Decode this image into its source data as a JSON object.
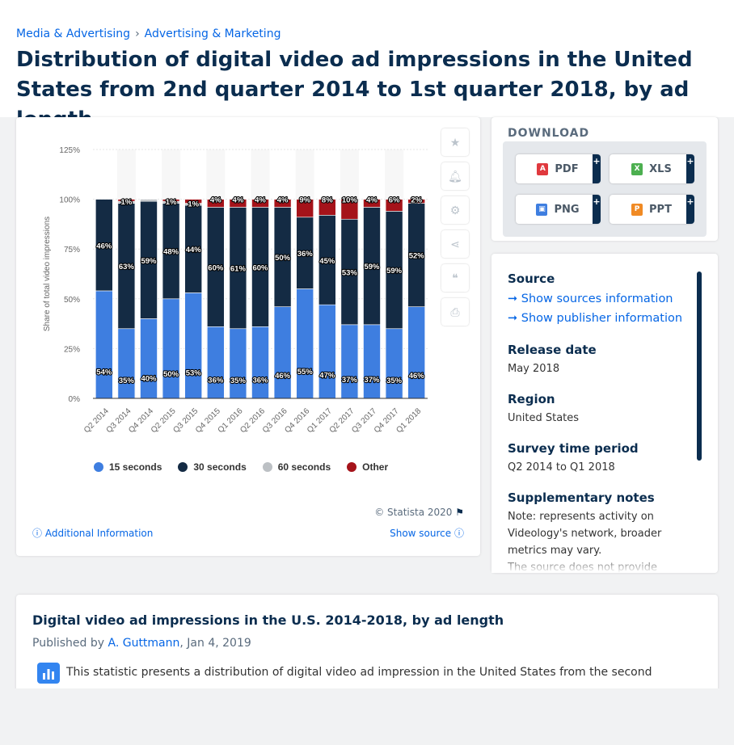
{
  "breadcrumb": [
    "Media & Advertising",
    "Advertising & Marketing"
  ],
  "title": "Distribution of digital video ad impressions in the United States from 2nd quarter 2014 to 1st quarter 2018, by ad length",
  "chart_data": {
    "type": "bar",
    "stacked": true,
    "categories": [
      "Q2 2014",
      "Q3 2014",
      "Q4 2014",
      "Q2 2015",
      "Q3 2015",
      "Q4 2015",
      "Q1 2016",
      "Q2 2016",
      "Q3 2016",
      "Q4 2016",
      "Q1 2017",
      "Q2 2017",
      "Q3 2017",
      "Q4 2017",
      "Q1 2018"
    ],
    "ylabel": "Share of total video impressions",
    "yticks": [
      "0%",
      "25%",
      "50%",
      "75%",
      "100%",
      "125%"
    ],
    "ylim": [
      0,
      125
    ],
    "series": [
      {
        "name": "15 seconds",
        "color": "#3e7ee0",
        "values": [
          54,
          35,
          40,
          50,
          53,
          36,
          35,
          36,
          46,
          55,
          47,
          37,
          37,
          35,
          46
        ],
        "labels": [
          "54%",
          "35%",
          "40%",
          "50%",
          "53%",
          "36%",
          "35%",
          "36%",
          "46%",
          "55%",
          "47%",
          "37%",
          "37%",
          "35%",
          "46%"
        ]
      },
      {
        "name": "30 seconds",
        "color": "#142b44",
        "values": [
          46,
          63,
          59,
          48,
          44,
          60,
          61,
          60,
          50,
          36,
          45,
          53,
          59,
          59,
          52
        ],
        "labels": [
          "46%",
          "63%",
          "59%",
          "48%",
          "44%",
          "60%",
          "61%",
          "60%",
          "50%",
          "36%",
          "45%",
          "53%",
          "59%",
          "59%",
          "52%"
        ]
      },
      {
        "name": "60 seconds",
        "color": "#bcc0c4",
        "values": [
          0,
          1,
          1,
          1,
          1,
          0,
          0,
          0,
          0,
          0,
          0,
          0,
          0,
          0,
          0
        ],
        "labels": [
          "",
          "1%",
          "",
          "1%",
          "1%",
          "",
          "",
          "",
          "",
          "",
          "",
          "",
          "",
          "",
          ""
        ]
      },
      {
        "name": "Other",
        "color": "#a5131a",
        "values": [
          0,
          1,
          0,
          1,
          2,
          4,
          4,
          4,
          4,
          9,
          8,
          10,
          4,
          6,
          2
        ],
        "labels": [
          "",
          "",
          "",
          "",
          "",
          "4%",
          "4%",
          "4%",
          "4%",
          "9%",
          "8%",
          "10%",
          "4%",
          "6%",
          "2%"
        ]
      }
    ],
    "legend": "bottom"
  },
  "credit": "© Statista 2020",
  "additional_info": "Additional Information",
  "show_source": "Show source",
  "download": {
    "title": "DOWNLOAD",
    "buttons": [
      {
        "label": "PDF",
        "icon": "pdf-icon",
        "color": "#e0393e"
      },
      {
        "label": "XLS",
        "icon": "xls-icon",
        "color": "#4caf50"
      },
      {
        "label": "PNG",
        "icon": "png-icon",
        "color": "#3e7ee0"
      },
      {
        "label": "PPT",
        "icon": "ppt-icon",
        "color": "#f08a24"
      }
    ]
  },
  "info": {
    "source_title": "Source",
    "show_sources": "Show sources information",
    "show_publisher": "Show publisher information",
    "release_title": "Release date",
    "release": "May 2018",
    "region_title": "Region",
    "region": "United States",
    "survey_title": "Survey time period",
    "survey": "Q2 2014 to Q1 2018",
    "notes_title": "Supplementary notes",
    "notes": "Note: represents activity on Videology's network, broader metrics may vary.",
    "notes2": "The source does not provide"
  },
  "desc": {
    "title": "Digital video ad impressions in the U.S. 2014-2018, by ad length",
    "published_prefix": "Published by ",
    "author": "A. Guttmann",
    "date": ", Jan 4, 2019",
    "text": "This statistic presents a distribution of digital video ad impression in the United States from the second"
  }
}
